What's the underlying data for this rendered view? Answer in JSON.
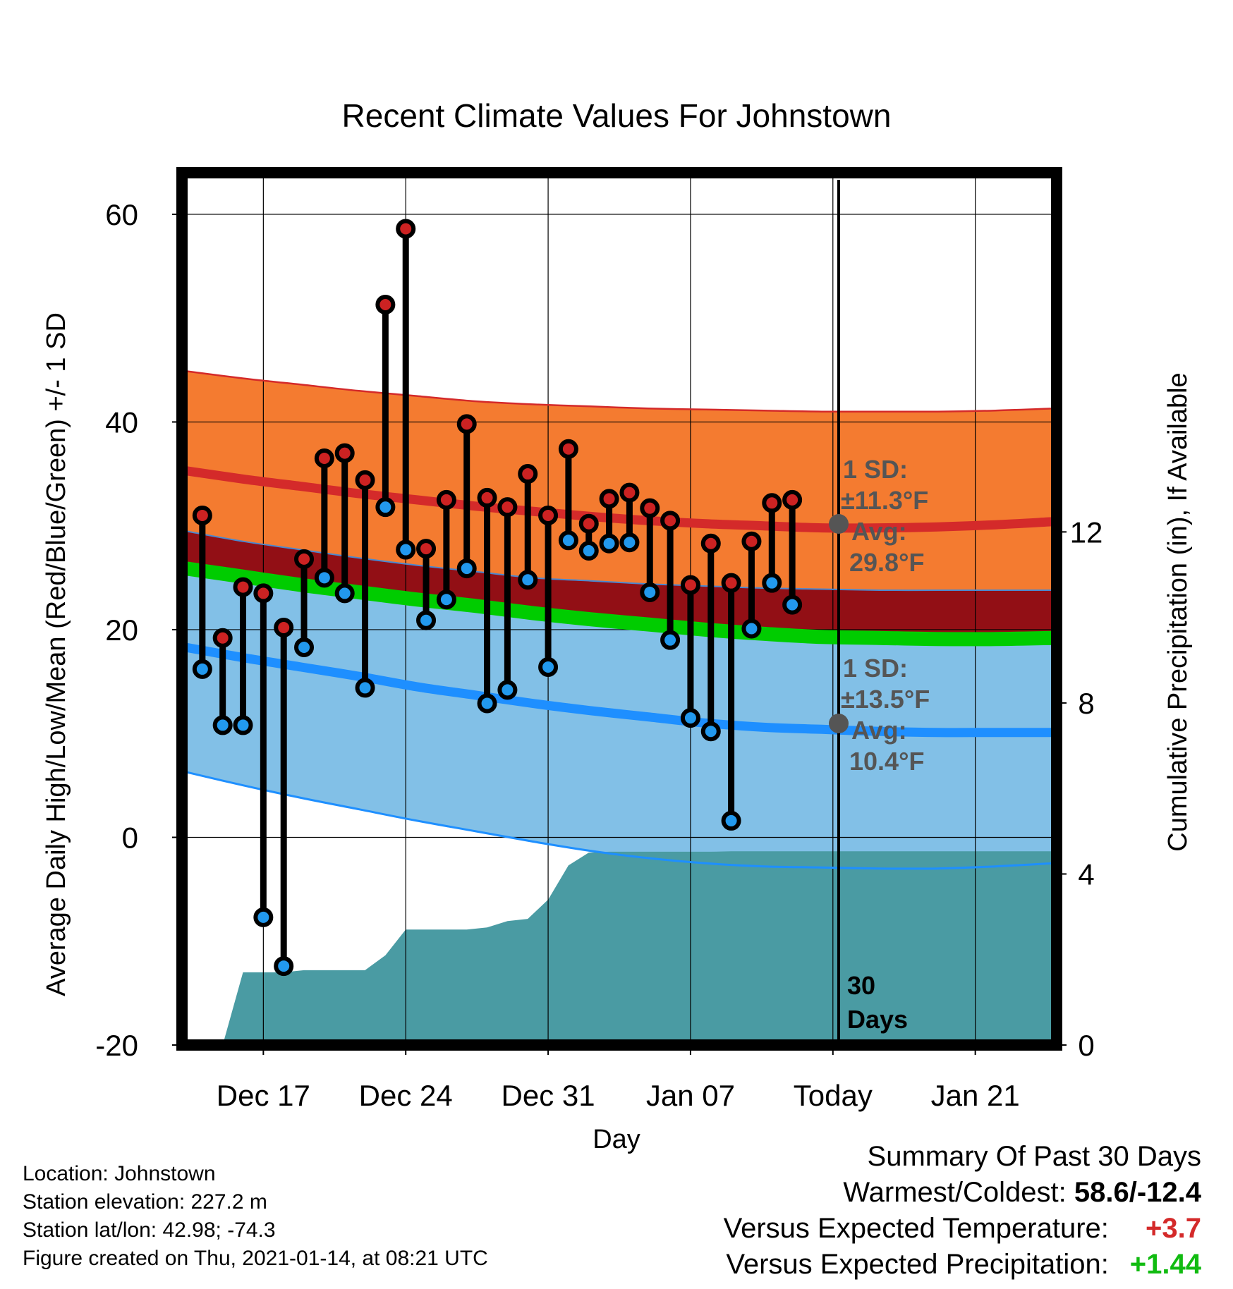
{
  "chart_data": {
    "type": "line",
    "title": "Recent Climate Values For Johnstown",
    "xlabel": "Day",
    "ylabel": "Average Daily High/Low/Mean (Red/Blue/Green) +/- 1 SD",
    "y2label": "Cumulative Precipitation (in), If Available",
    "x_start": "2020-12-14",
    "xlim": [
      "2020-12-13",
      "2021-01-25"
    ],
    "ylim": [
      -20,
      64
    ],
    "y2lim": [
      0,
      20.4
    ],
    "yticks": [
      -20,
      0,
      20,
      40,
      60
    ],
    "y2ticks": [
      0,
      4,
      8,
      12
    ],
    "x_tick_labels": [
      "Dec 17",
      "Dec 24",
      "Dec 31",
      "Jan 07",
      "Today",
      "Jan 21"
    ],
    "today": "2021-01-14",
    "grid": true,
    "series": [
      {
        "name": "High",
        "color": "#cc2222",
        "values": [
          31,
          19.2,
          24.1,
          23.5,
          20.2,
          26.8,
          36.5,
          37,
          34.4,
          51.3,
          58.6,
          27.8,
          32.5,
          39.8,
          32.7,
          31.8,
          35,
          31,
          37.4,
          30.2,
          32.6,
          33.2,
          31.7,
          30.5,
          24.3,
          28.3,
          24.5,
          28.5,
          32.2,
          32.5
        ]
      },
      {
        "name": "Low",
        "color": "#2299ee",
        "values": [
          16.2,
          10.8,
          10.8,
          -7.7,
          -12.4,
          18.3,
          25,
          23.5,
          14.4,
          31.8,
          27.7,
          20.9,
          22.9,
          25.9,
          12.9,
          14.2,
          24.8,
          16.4,
          28.6,
          27.6,
          28.3,
          28.4,
          23.6,
          19,
          11.5,
          10.2,
          1.6,
          20.1,
          24.5,
          22.4
        ]
      },
      {
        "name": "Normal High",
        "mean": [
          35.3,
          34.5,
          33.8,
          33.1,
          32.5,
          31.9,
          31.4,
          30.9,
          30.5,
          30.2,
          30.0,
          29.8,
          29.8,
          29.9,
          30.1,
          30.4
        ],
        "upper": [
          44.9,
          44.2,
          43.6,
          43.0,
          42.5,
          42.0,
          41.7,
          41.5,
          41.3,
          41.2,
          41.1,
          41.0,
          41.0,
          41.0,
          41.1,
          41.3
        ]
      },
      {
        "name": "Normal Mean",
        "values": [
          25.9,
          25.1,
          24.3,
          23.6,
          22.9,
          22.3,
          21.6,
          21.0,
          20.5,
          20.0,
          19.6,
          19.3,
          19.2,
          19.1,
          19.1,
          19.2
        ]
      },
      {
        "name": "Normal Low",
        "mean": [
          18.3,
          17.3,
          16.4,
          15.5,
          14.5,
          13.7,
          12.9,
          12.2,
          11.6,
          11.0,
          10.6,
          10.4,
          10.2,
          10.1,
          10.1,
          10.1
        ],
        "lower": [
          6.3,
          5.0,
          3.8,
          2.7,
          1.6,
          0.6,
          -0.4,
          -1.3,
          -2.0,
          -2.5,
          -2.8,
          -2.9,
          -3.0,
          -3.0,
          -2.8,
          -2.5
        ],
        "upper": [
          29.5,
          28.5,
          27.7,
          26.9,
          26.2,
          25.6,
          25.0,
          24.7,
          24.4,
          24.2,
          24.0,
          23.9,
          23.8,
          23.8,
          23.8,
          23.8
        ]
      },
      {
        "name": "Cumulative Precipitation",
        "color": "#4a9ba3",
        "values": [
          0,
          0,
          1.7,
          1.7,
          1.7,
          1.75,
          1.75,
          1.75,
          1.75,
          2.1,
          2.7,
          2.7,
          2.7,
          2.7,
          2.75,
          2.9,
          2.95,
          3.4,
          4.2,
          4.5,
          4.52,
          4.52,
          4.52,
          4.52,
          4.52,
          4.52,
          4.53,
          4.53,
          4.53,
          4.53,
          4.53,
          4.53,
          4.53,
          4.53,
          4.53,
          4.53,
          4.53,
          4.53,
          4.53,
          4.53,
          4.53,
          4.53
        ]
      }
    ],
    "annotations": {
      "high_sd": "1 SD:",
      "high_sd_val": "±11.3°F",
      "high_avg": "Avg:",
      "high_avg_val": "29.8°F",
      "low_sd": "1 SD:",
      "low_sd_val": "±13.5°F",
      "low_avg": "Avg:",
      "low_avg_val": "10.4°F",
      "days_num": "30",
      "days_word": "Days"
    }
  },
  "info": {
    "location": "Location: Johnstown",
    "elevation": "Station elevation: 227.2 m",
    "latlon": "Station lat/lon: 42.98; -74.3",
    "created": "Figure created on Thu, 2021-01-14, at 08:21 UTC"
  },
  "summary": {
    "heading": "Summary Of Past 30 Days",
    "warm_cold_label": "Warmest/Coldest:",
    "warm_cold_value": "58.6/-12.4",
    "temp_label": "Versus Expected Temperature:",
    "temp_value": "+3.7",
    "temp_color": "#d42a2a",
    "precip_label": "Versus Expected Precipitation:",
    "precip_value": "+1.44",
    "precip_color": "#11bb11"
  }
}
